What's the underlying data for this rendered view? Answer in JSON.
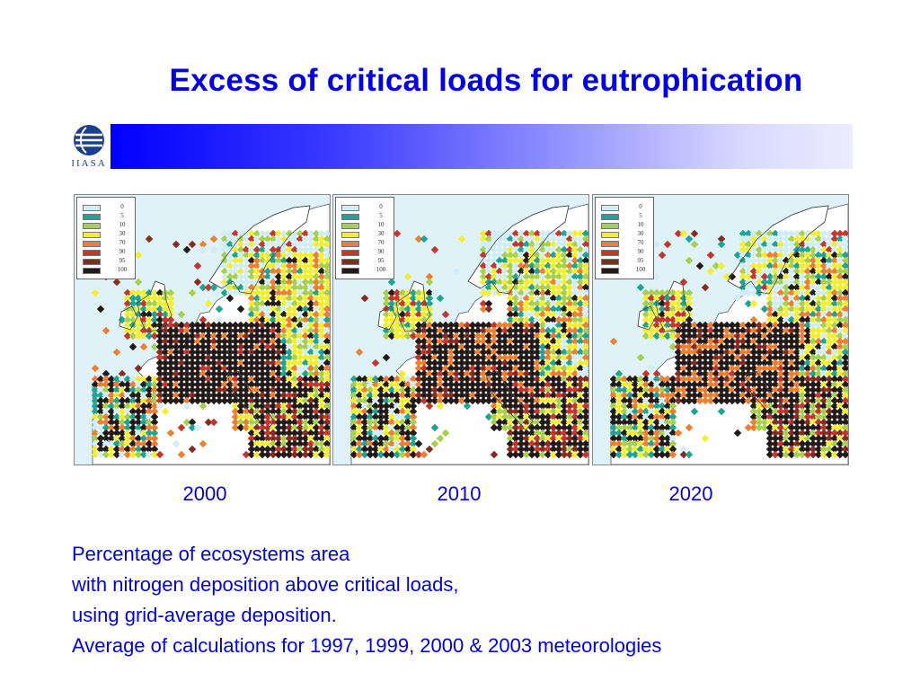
{
  "title": "Excess of critical loads for eutrophication",
  "header": {
    "logo_text": "IIASA",
    "band_colors": [
      "#0000ff",
      "#ececff"
    ]
  },
  "legend": {
    "labels": [
      "0",
      "5",
      "10",
      "30",
      "70",
      "90",
      "95",
      "100"
    ],
    "colors": [
      "#cfeefa",
      "#1aa595",
      "#a6d24a",
      "#f3ef2c",
      "#f07e2d",
      "#c9332a",
      "#8a2a1e",
      "#221a18"
    ]
  },
  "maps": [
    {
      "year": "2000"
    },
    {
      "year": "2010"
    },
    {
      "year": "2020"
    }
  ],
  "caption": {
    "lines": [
      "Percentage of ecosystems area",
      "with nitrogen deposition above critical loads,",
      "using grid-average deposition.",
      "Average of calculations for 1997, 1999, 2000 & 2003 meteorologies"
    ]
  },
  "colors": {
    "accent": "#0000ee",
    "sea": "#dff2f8"
  }
}
